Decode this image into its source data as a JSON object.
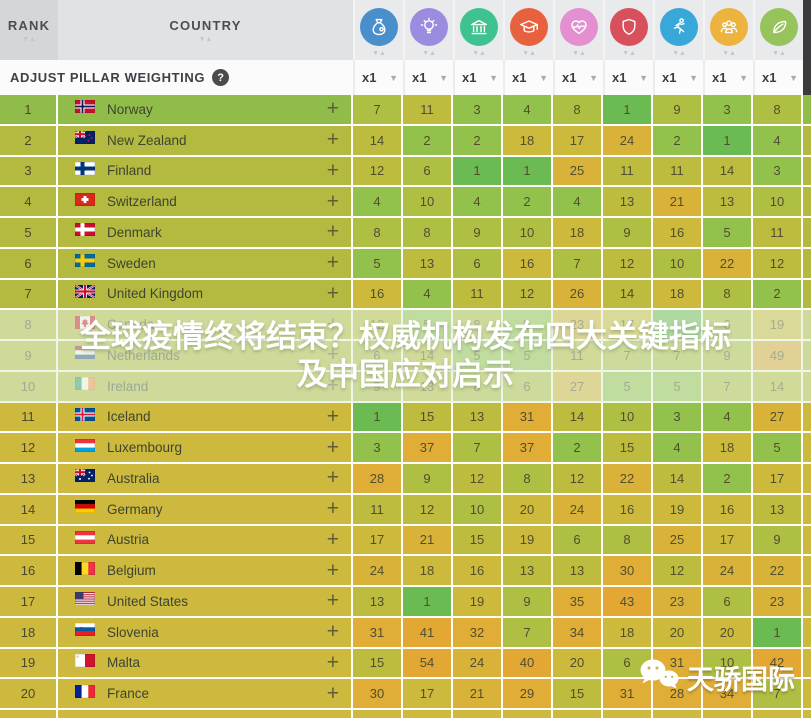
{
  "header": {
    "rank_label": "RANK",
    "country_label": "COUNTRY",
    "adjust_label": "ADJUST PILLAR WEIGHTING",
    "help_icon": "question-mark-icon",
    "pillars": [
      {
        "name": "economy",
        "icon": "money-bag-icon",
        "color": "#4a8fcb",
        "weight": "x1"
      },
      {
        "name": "business-environment",
        "icon": "lightbulb-icon",
        "color": "#9c8ce0",
        "weight": "x1"
      },
      {
        "name": "governance",
        "icon": "bank-icon",
        "color": "#3ec28f",
        "weight": "x1"
      },
      {
        "name": "education",
        "icon": "graduation-cap-icon",
        "color": "#e8613e",
        "weight": "x1"
      },
      {
        "name": "health",
        "icon": "heart-pulse-icon",
        "color": "#e38fd0",
        "weight": "x1"
      },
      {
        "name": "safety-security",
        "icon": "shield-icon",
        "color": "#d8505c",
        "weight": "x1"
      },
      {
        "name": "personal-freedom",
        "icon": "runner-icon",
        "color": "#38a8d8",
        "weight": "x1"
      },
      {
        "name": "social-capital",
        "icon": "people-icon",
        "color": "#ecb33e",
        "weight": "x1"
      },
      {
        "name": "natural-environment",
        "icon": "leaf-icon",
        "color": "#97c35c",
        "weight": "x1"
      }
    ]
  },
  "table": {
    "rows": [
      {
        "rank": 1,
        "country": "Norway",
        "flag": "no",
        "band": "green",
        "values": [
          7,
          11,
          3,
          4,
          8,
          1,
          9,
          3,
          8
        ]
      },
      {
        "rank": 2,
        "country": "New Zealand",
        "flag": "nz",
        "band": "olive",
        "values": [
          14,
          2,
          2,
          18,
          17,
          24,
          2,
          1,
          4
        ]
      },
      {
        "rank": 3,
        "country": "Finland",
        "flag": "fi",
        "band": "olive",
        "values": [
          12,
          6,
          1,
          1,
          25,
          11,
          11,
          14,
          3
        ]
      },
      {
        "rank": 4,
        "country": "Switzerland",
        "flag": "ch",
        "band": "olive",
        "values": [
          4,
          10,
          4,
          2,
          4,
          13,
          21,
          13,
          10
        ]
      },
      {
        "rank": 5,
        "country": "Denmark",
        "flag": "dk",
        "band": "olive",
        "values": [
          8,
          8,
          9,
          10,
          18,
          9,
          16,
          5,
          11
        ]
      },
      {
        "rank": 6,
        "country": "Sweden",
        "flag": "se",
        "band": "olive",
        "values": [
          5,
          13,
          6,
          16,
          7,
          12,
          10,
          22,
          12
        ]
      },
      {
        "rank": 7,
        "country": "United Kingdom",
        "flag": "gb",
        "band": "olive",
        "values": [
          16,
          4,
          11,
          12,
          26,
          14,
          18,
          8,
          2
        ]
      },
      {
        "rank": 8,
        "country": "Canada",
        "flag": "ca",
        "band": "olive",
        "values": [
          12,
          5,
          8,
          5,
          23,
          17,
          1,
          6,
          19
        ]
      },
      {
        "rank": 9,
        "country": "Netherlands",
        "flag": "nl",
        "band": "olive",
        "values": [
          6,
          14,
          5,
          5,
          11,
          7,
          7,
          9,
          49
        ]
      },
      {
        "rank": 10,
        "country": "Ireland",
        "flag": "ie",
        "band": "olive",
        "values": [
          9,
          13,
          8,
          6,
          27,
          5,
          5,
          7,
          14
        ]
      },
      {
        "rank": 11,
        "country": "Iceland",
        "flag": "is",
        "band": "gold",
        "values": [
          1,
          15,
          13,
          31,
          14,
          10,
          3,
          4,
          27
        ]
      },
      {
        "rank": 12,
        "country": "Luxembourg",
        "flag": "lu",
        "band": "gold",
        "values": [
          3,
          37,
          7,
          37,
          2,
          15,
          4,
          18,
          5
        ]
      },
      {
        "rank": 13,
        "country": "Australia",
        "flag": "au",
        "band": "gold",
        "values": [
          28,
          9,
          12,
          8,
          12,
          22,
          14,
          2,
          17
        ]
      },
      {
        "rank": 14,
        "country": "Germany",
        "flag": "de",
        "band": "gold",
        "values": [
          11,
          12,
          10,
          20,
          24,
          16,
          19,
          16,
          13
        ]
      },
      {
        "rank": 15,
        "country": "Austria",
        "flag": "at",
        "band": "gold",
        "values": [
          17,
          21,
          15,
          19,
          6,
          8,
          25,
          17,
          9
        ]
      },
      {
        "rank": 16,
        "country": "Belgium",
        "flag": "be",
        "band": "gold",
        "values": [
          24,
          18,
          16,
          13,
          13,
          30,
          12,
          24,
          22
        ]
      },
      {
        "rank": 17,
        "country": "United States",
        "flag": "us",
        "band": "gold",
        "values": [
          13,
          1,
          19,
          9,
          35,
          43,
          23,
          6,
          23
        ]
      },
      {
        "rank": 18,
        "country": "Slovenia",
        "flag": "si",
        "band": "gold",
        "values": [
          31,
          41,
          32,
          7,
          34,
          18,
          20,
          20,
          1
        ]
      },
      {
        "rank": 19,
        "country": "Malta",
        "flag": "mt",
        "band": "gold",
        "values": [
          15,
          54,
          24,
          40,
          20,
          6,
          31,
          10,
          42
        ]
      },
      {
        "rank": 20,
        "country": "France",
        "flag": "fr",
        "band": "gold",
        "values": [
          30,
          17,
          21,
          29,
          15,
          31,
          28,
          34,
          7
        ]
      }
    ],
    "expand_button_label": "+"
  },
  "overlay": {
    "line1": "全球疫情终将结束？权威机构发布四大关键指标",
    "line2": "及中国应对启示"
  },
  "watermark": {
    "icon": "wechat-icon",
    "text": "天骄国际"
  },
  "colors": {
    "row_bands": {
      "green": "#90bd4a",
      "olive": "#b4ba40",
      "gold": "#ccb93d"
    },
    "value_scale": [
      {
        "max": 1,
        "color": "#6cba52"
      },
      {
        "max": 5,
        "color": "#93c24c"
      },
      {
        "max": 10,
        "color": "#aebf44"
      },
      {
        "max": 15,
        "color": "#bdbc3f"
      },
      {
        "max": 20,
        "color": "#cdb93c"
      },
      {
        "max": 27,
        "color": "#d9b339"
      },
      {
        "max": 39,
        "color": "#e0ad37"
      },
      {
        "max": 999,
        "color": "#e3a834"
      }
    ],
    "header_dark": "#3a3a3c"
  }
}
